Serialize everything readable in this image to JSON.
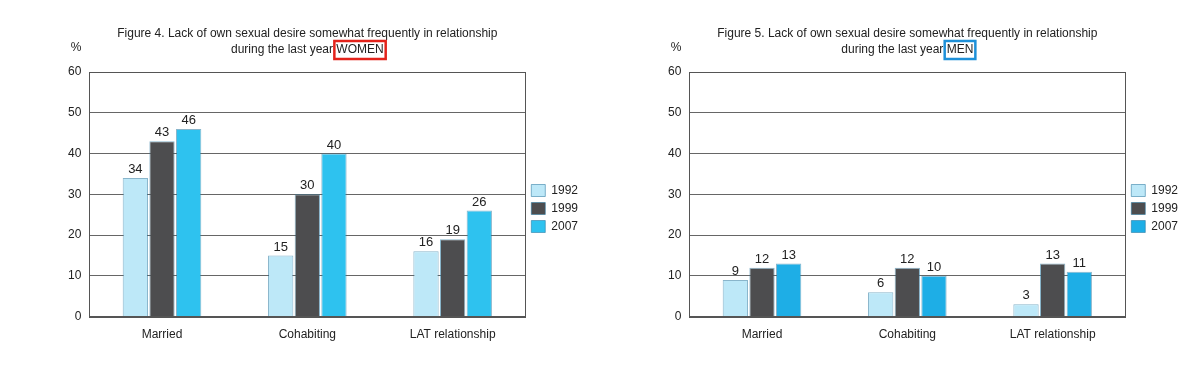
{
  "chart_data": [
    {
      "type": "bar",
      "title": [
        "Figure 4. Lack of own sexual desire somewhat frequently in relationship",
        "during the last year WOMEN"
      ],
      "ylabel": "%",
      "categories": [
        "Married",
        "Cohabiting",
        "LAT relationship"
      ],
      "series": [
        {
          "name": "1992",
          "color": "#bde8f8",
          "values": [
            34,
            15,
            16
          ]
        },
        {
          "name": "1999",
          "color": "#4d4d4f",
          "values": [
            43,
            30,
            19
          ]
        },
        {
          "name": "2007",
          "color": "#2ec2ef",
          "values": [
            46,
            40,
            26
          ]
        }
      ],
      "ylim": [
        0,
        60
      ],
      "yticks": [
        0,
        10,
        20,
        30,
        40,
        50,
        60
      ],
      "grid": true,
      "legend": "right",
      "data_labels": true
    },
    {
      "type": "bar",
      "title": [
        "Figure 5. Lack of own sexual desire somewhat frequently in relationship",
        "during the last year MEN"
      ],
      "ylabel": "%",
      "categories": [
        "Married",
        "Cohabiting",
        "LAT relationship"
      ],
      "series": [
        {
          "name": "1992",
          "color": "#bde8f8",
          "values": [
            9,
            6,
            3
          ]
        },
        {
          "name": "1999",
          "color": "#4d4d4f",
          "values": [
            12,
            12,
            13
          ]
        },
        {
          "name": "2007",
          "color": "#1eaee6",
          "values": [
            13,
            10,
            11
          ]
        }
      ],
      "ylim": [
        0,
        60
      ],
      "yticks": [
        0,
        10,
        20,
        30,
        40,
        50,
        60
      ],
      "grid": true,
      "legend": "right",
      "data_labels": true
    }
  ]
}
